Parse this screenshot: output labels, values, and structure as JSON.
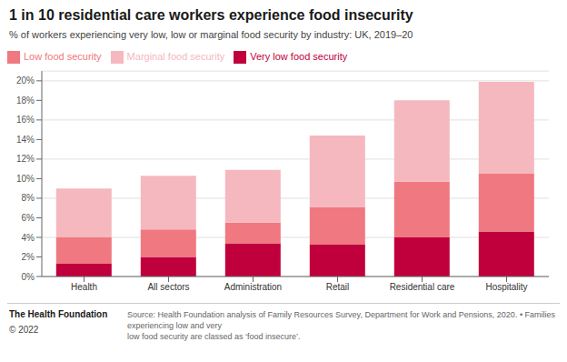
{
  "chart_data": {
    "type": "bar",
    "title": "1 in 10 residential care workers experience food insecurity",
    "subtitle": "% of workers experiencing very low, low or marginal food security by industry: UK, 2019–20",
    "categories": [
      "Health",
      "All sectors",
      "Administration",
      "Retail",
      "Residential care",
      "Hospitality"
    ],
    "series": [
      {
        "name": "Very low food security",
        "color": "#c0003c",
        "values": [
          1.3,
          2.0,
          3.4,
          3.3,
          4.0,
          4.6
        ]
      },
      {
        "name": "Low food security",
        "color": "#f07880",
        "values": [
          2.7,
          2.8,
          2.1,
          3.8,
          5.7,
          5.9
        ]
      },
      {
        "name": "Marginal food security",
        "color": "#f5b8be",
        "values": [
          5.0,
          5.5,
          5.4,
          7.3,
          8.3,
          9.4
        ]
      }
    ],
    "stacked": true,
    "ylim": [
      0,
      21
    ],
    "yticks": [
      {
        "value": 0,
        "label": "0%"
      },
      {
        "value": 2,
        "label": "2%"
      },
      {
        "value": 4,
        "label": "4%"
      },
      {
        "value": 6,
        "label": "6%"
      },
      {
        "value": 8,
        "label": "8%"
      },
      {
        "value": 10,
        "label": "10%"
      },
      {
        "value": 12,
        "label": "12%"
      },
      {
        "value": 14,
        "label": "14%"
      },
      {
        "value": 16,
        "label": "16%"
      },
      {
        "value": 18,
        "label": "18%"
      },
      {
        "value": 20,
        "label": "20%"
      }
    ],
    "grid": true,
    "legend": "top",
    "annotations": [
      "The Health Foundation",
      "© 2022",
      "Source: Health Foundation analysis of Family Resources Survey, Department for Work and Pensions, 2020. • Families experiencing low and very\nlow food security are classed as ‘food insecure’."
    ]
  }
}
